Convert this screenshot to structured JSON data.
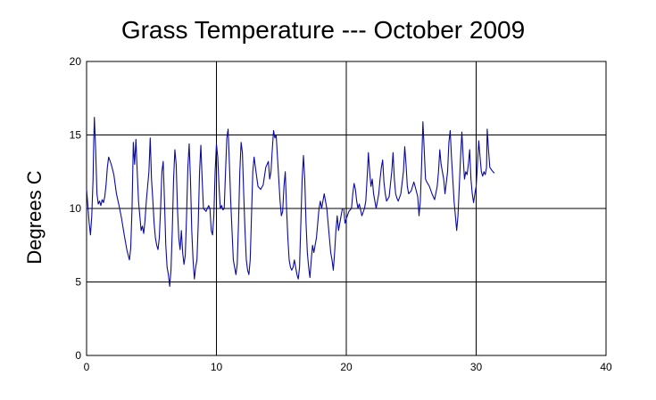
{
  "chart_data": {
    "type": "line",
    "title": "Grass Temperature --- October 2009",
    "ylabel": "Degrees C",
    "xlabel": "",
    "xlim": [
      0,
      40
    ],
    "ylim": [
      0,
      20
    ],
    "xticks": [
      "0",
      "10",
      "20",
      "30",
      "40"
    ],
    "yticks": [
      "0",
      "5",
      "10",
      "15",
      "20"
    ],
    "grid": true,
    "series": [
      {
        "color": "#0a0aa0",
        "points": [
          [
            0.0,
            11.3
          ],
          [
            0.1,
            10.2
          ],
          [
            0.2,
            9.0
          ],
          [
            0.3,
            8.2
          ],
          [
            0.4,
            9.5
          ],
          [
            0.5,
            12.0
          ],
          [
            0.55,
            14.5
          ],
          [
            0.6,
            16.2
          ],
          [
            0.7,
            14.0
          ],
          [
            0.8,
            11.0
          ],
          [
            0.9,
            10.3
          ],
          [
            1.0,
            10.5
          ],
          [
            1.1,
            10.2
          ],
          [
            1.2,
            10.6
          ],
          [
            1.3,
            10.4
          ],
          [
            1.4,
            10.8
          ],
          [
            1.5,
            11.6
          ],
          [
            1.6,
            12.8
          ],
          [
            1.7,
            13.5
          ],
          [
            1.9,
            13.0
          ],
          [
            2.1,
            12.3
          ],
          [
            2.3,
            11.0
          ],
          [
            2.5,
            10.2
          ],
          [
            2.7,
            9.3
          ],
          [
            2.9,
            8.2
          ],
          [
            3.1,
            7.2
          ],
          [
            3.3,
            6.5
          ],
          [
            3.4,
            7.3
          ],
          [
            3.5,
            10.0
          ],
          [
            3.6,
            14.5
          ],
          [
            3.7,
            13.0
          ],
          [
            3.8,
            14.7
          ],
          [
            3.9,
            12.5
          ],
          [
            4.0,
            10.5
          ],
          [
            4.1,
            9.5
          ],
          [
            4.2,
            8.5
          ],
          [
            4.3,
            8.8
          ],
          [
            4.4,
            8.3
          ],
          [
            4.5,
            9.2
          ],
          [
            4.6,
            10.5
          ],
          [
            4.8,
            12.5
          ],
          [
            4.9,
            14.8
          ],
          [
            5.0,
            12.0
          ],
          [
            5.1,
            10.6
          ],
          [
            5.2,
            9.0
          ],
          [
            5.3,
            8.0
          ],
          [
            5.4,
            7.5
          ],
          [
            5.5,
            7.2
          ],
          [
            5.6,
            8.0
          ],
          [
            5.7,
            10.0
          ],
          [
            5.8,
            12.5
          ],
          [
            5.9,
            13.2
          ],
          [
            6.0,
            10.5
          ],
          [
            6.1,
            7.5
          ],
          [
            6.2,
            6.0
          ],
          [
            6.3,
            5.5
          ],
          [
            6.4,
            4.7
          ],
          [
            6.5,
            5.8
          ],
          [
            6.6,
            8.5
          ],
          [
            6.7,
            12.0
          ],
          [
            6.8,
            14.0
          ],
          [
            6.9,
            13.0
          ],
          [
            7.0,
            10.0
          ],
          [
            7.1,
            8.0
          ],
          [
            7.2,
            7.2
          ],
          [
            7.3,
            8.5
          ],
          [
            7.4,
            7.0
          ],
          [
            7.5,
            6.2
          ],
          [
            7.6,
            6.8
          ],
          [
            7.7,
            9.5
          ],
          [
            7.8,
            12.8
          ],
          [
            7.9,
            14.4
          ],
          [
            8.0,
            12.0
          ],
          [
            8.1,
            8.5
          ],
          [
            8.2,
            6.5
          ],
          [
            8.3,
            5.2
          ],
          [
            8.4,
            6.0
          ],
          [
            8.5,
            6.5
          ],
          [
            8.6,
            9.0
          ],
          [
            8.7,
            12.5
          ],
          [
            8.8,
            14.3
          ],
          [
            8.9,
            12.0
          ],
          [
            9.0,
            10.0
          ],
          [
            9.2,
            9.8
          ],
          [
            9.4,
            10.2
          ],
          [
            9.5,
            10.0
          ],
          [
            9.6,
            8.5
          ],
          [
            9.7,
            8.2
          ],
          [
            9.8,
            9.5
          ],
          [
            9.9,
            12.5
          ],
          [
            10.0,
            14.4
          ],
          [
            10.1,
            13.5
          ],
          [
            10.2,
            11.5
          ],
          [
            10.3,
            10.0
          ],
          [
            10.4,
            10.2
          ],
          [
            10.5,
            9.9
          ],
          [
            10.6,
            10.0
          ],
          [
            10.7,
            12.5
          ],
          [
            10.8,
            14.8
          ],
          [
            10.9,
            15.4
          ],
          [
            11.0,
            13.0
          ],
          [
            11.1,
            10.5
          ],
          [
            11.2,
            8.5
          ],
          [
            11.3,
            6.5
          ],
          [
            11.4,
            6.0
          ],
          [
            11.5,
            5.5
          ],
          [
            11.6,
            6.2
          ],
          [
            11.7,
            9.0
          ],
          [
            11.8,
            12.5
          ],
          [
            11.9,
            14.5
          ],
          [
            12.0,
            13.8
          ],
          [
            12.1,
            11.0
          ],
          [
            12.2,
            8.5
          ],
          [
            12.3,
            6.5
          ],
          [
            12.4,
            5.8
          ],
          [
            12.5,
            5.5
          ],
          [
            12.6,
            6.5
          ],
          [
            12.7,
            9.5
          ],
          [
            12.8,
            12.5
          ],
          [
            12.9,
            13.5
          ],
          [
            13.0,
            12.8
          ],
          [
            13.2,
            11.5
          ],
          [
            13.4,
            11.3
          ],
          [
            13.6,
            11.6
          ],
          [
            13.8,
            12.8
          ],
          [
            14.0,
            13.2
          ],
          [
            14.1,
            12.0
          ],
          [
            14.2,
            12.5
          ],
          [
            14.3,
            14.0
          ],
          [
            14.4,
            15.3
          ],
          [
            14.5,
            14.8
          ],
          [
            14.6,
            15.0
          ],
          [
            14.7,
            13.5
          ],
          [
            14.8,
            12.0
          ],
          [
            14.9,
            10.5
          ],
          [
            15.0,
            9.5
          ],
          [
            15.1,
            9.8
          ],
          [
            15.2,
            11.5
          ],
          [
            15.3,
            12.5
          ],
          [
            15.4,
            10.0
          ],
          [
            15.5,
            8.0
          ],
          [
            15.6,
            6.5
          ],
          [
            15.7,
            6.0
          ],
          [
            15.8,
            5.8
          ],
          [
            15.9,
            6.0
          ],
          [
            16.0,
            6.5
          ],
          [
            16.1,
            6.0
          ],
          [
            16.2,
            5.5
          ],
          [
            16.3,
            5.2
          ],
          [
            16.4,
            6.0
          ],
          [
            16.5,
            9.0
          ],
          [
            16.6,
            12.0
          ],
          [
            16.7,
            13.6
          ],
          [
            16.8,
            12.0
          ],
          [
            16.9,
            9.0
          ],
          [
            17.0,
            7.0
          ],
          [
            17.1,
            6.0
          ],
          [
            17.2,
            5.3
          ],
          [
            17.3,
            6.5
          ],
          [
            17.4,
            7.5
          ],
          [
            17.5,
            7.0
          ],
          [
            17.6,
            7.5
          ],
          [
            17.7,
            8.0
          ],
          [
            17.8,
            9.0
          ],
          [
            17.9,
            10.0
          ],
          [
            18.0,
            10.5
          ],
          [
            18.1,
            10.0
          ],
          [
            18.2,
            10.5
          ],
          [
            18.3,
            11.0
          ],
          [
            18.4,
            10.5
          ],
          [
            18.5,
            10.0
          ],
          [
            18.6,
            9.0
          ],
          [
            18.7,
            8.0
          ],
          [
            18.8,
            7.0
          ],
          [
            18.9,
            6.5
          ],
          [
            19.0,
            5.8
          ],
          [
            19.1,
            7.0
          ],
          [
            19.2,
            8.5
          ],
          [
            19.3,
            9.5
          ],
          [
            19.4,
            8.5
          ],
          [
            19.5,
            9.0
          ],
          [
            19.6,
            9.5
          ],
          [
            19.7,
            10.0
          ],
          [
            19.8,
            10.0
          ],
          [
            19.9,
            9.0
          ],
          [
            20.0,
            9.3
          ],
          [
            20.2,
            9.8
          ],
          [
            20.4,
            10.0
          ],
          [
            20.5,
            11.0
          ],
          [
            20.6,
            11.7
          ],
          [
            20.7,
            11.3
          ],
          [
            20.8,
            10.5
          ],
          [
            20.9,
            10.0
          ],
          [
            21.0,
            10.3
          ],
          [
            21.2,
            9.5
          ],
          [
            21.4,
            10.0
          ],
          [
            21.5,
            10.5
          ],
          [
            21.6,
            12.0
          ],
          [
            21.7,
            13.8
          ],
          [
            21.8,
            12.5
          ],
          [
            21.9,
            11.5
          ],
          [
            22.0,
            12.0
          ],
          [
            22.1,
            11.0
          ],
          [
            22.2,
            10.5
          ],
          [
            22.3,
            10.0
          ],
          [
            22.4,
            10.5
          ],
          [
            22.5,
            11.0
          ],
          [
            22.6,
            12.0
          ],
          [
            22.7,
            12.8
          ],
          [
            22.8,
            13.3
          ],
          [
            22.9,
            11.8
          ],
          [
            23.0,
            11.0
          ],
          [
            23.1,
            10.5
          ],
          [
            23.3,
            10.8
          ],
          [
            23.5,
            12.5
          ],
          [
            23.6,
            13.8
          ],
          [
            23.7,
            12.0
          ],
          [
            23.8,
            11.0
          ],
          [
            23.9,
            10.7
          ],
          [
            24.0,
            10.5
          ],
          [
            24.2,
            11.0
          ],
          [
            24.4,
            12.5
          ],
          [
            24.5,
            14.2
          ],
          [
            24.6,
            13.0
          ],
          [
            24.7,
            11.5
          ],
          [
            24.8,
            11.0
          ],
          [
            25.0,
            11.2
          ],
          [
            25.2,
            11.8
          ],
          [
            25.3,
            11.5
          ],
          [
            25.5,
            10.8
          ],
          [
            25.6,
            9.5
          ],
          [
            25.7,
            10.5
          ],
          [
            25.8,
            13.0
          ],
          [
            25.9,
            15.9
          ],
          [
            26.0,
            14.0
          ],
          [
            26.1,
            12.0
          ],
          [
            26.2,
            11.8
          ],
          [
            26.4,
            11.5
          ],
          [
            26.6,
            11.0
          ],
          [
            26.8,
            10.6
          ],
          [
            27.0,
            11.5
          ],
          [
            27.1,
            12.5
          ],
          [
            27.2,
            14.0
          ],
          [
            27.3,
            13.0
          ],
          [
            27.5,
            12.0
          ],
          [
            27.6,
            11.0
          ],
          [
            27.8,
            12.5
          ],
          [
            27.9,
            14.5
          ],
          [
            28.0,
            15.3
          ],
          [
            28.1,
            13.5
          ],
          [
            28.2,
            12.0
          ],
          [
            28.3,
            10.5
          ],
          [
            28.4,
            9.5
          ],
          [
            28.5,
            8.5
          ],
          [
            28.6,
            9.5
          ],
          [
            28.7,
            11.5
          ],
          [
            28.8,
            13.5
          ],
          [
            28.9,
            15.2
          ],
          [
            29.0,
            13.5
          ],
          [
            29.1,
            12.0
          ],
          [
            29.2,
            12.5
          ],
          [
            29.3,
            12.3
          ],
          [
            29.4,
            13.0
          ],
          [
            29.5,
            14.0
          ],
          [
            29.6,
            12.0
          ],
          [
            29.7,
            11.0
          ],
          [
            29.8,
            10.4
          ],
          [
            29.9,
            11.0
          ],
          [
            30.0,
            11.5
          ],
          [
            30.1,
            13.0
          ],
          [
            30.2,
            14.6
          ],
          [
            30.3,
            13.5
          ],
          [
            30.4,
            12.5
          ],
          [
            30.5,
            12.2
          ],
          [
            30.6,
            12.5
          ],
          [
            30.7,
            12.3
          ],
          [
            30.8,
            12.8
          ],
          [
            30.85,
            15.4
          ],
          [
            30.95,
            14.0
          ],
          [
            31.05,
            12.8
          ],
          [
            31.2,
            12.6
          ],
          [
            31.4,
            12.4
          ]
        ]
      }
    ]
  }
}
